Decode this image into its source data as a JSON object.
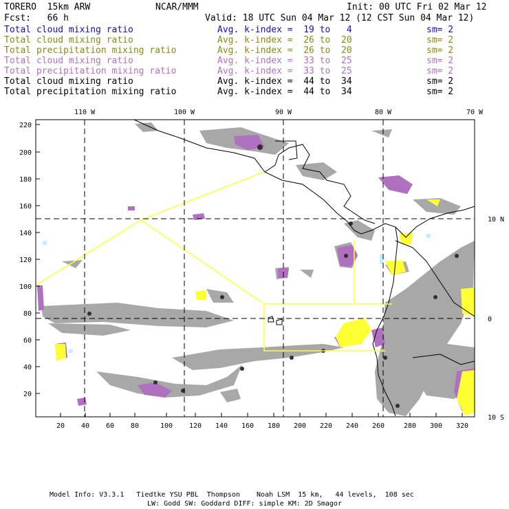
{
  "header": {
    "model": "TORERO  15km ARW",
    "center": "NCAR/MMM",
    "init": "Init: 00 UTC Fri 02 Mar 12",
    "fcst": "Fcst:   66 h",
    "valid": "Valid: 18 UTC Sun 04 Mar 12 (12 CST Sun 04 Mar 12)"
  },
  "legend": [
    {
      "name": "Total cloud mixing ratio",
      "range": "Avg. k-index =  19 to   4",
      "sm": "sm= 2",
      "color": "#1010c0"
    },
    {
      "name": "Total cloud mixing ratio",
      "range": "Avg. k-index =  26 to  20",
      "sm": "sm= 2",
      "color": "#8a8a10"
    },
    {
      "name": "Total precipitation mixing ratio",
      "range": "Avg. k-index =  26 to  20",
      "sm": "sm= 2",
      "color": "#8a8a10"
    },
    {
      "name": "Total cloud mixing ratio",
      "range": "Avg. k-index =  33 to  25",
      "sm": "sm= 2",
      "color": "#b070c0"
    },
    {
      "name": "Total precipitation mixing ratio",
      "range": "Avg. k-index =  33 to  25",
      "sm": "sm= 2",
      "color": "#b070c0"
    },
    {
      "name": "Total cloud mixing ratio",
      "range": "Avg. k-index =  44 to  34",
      "sm": "sm= 2",
      "color": "#000000"
    },
    {
      "name": "Total precipitation mixing ratio",
      "range": "Avg. k-index =  44 to  34",
      "sm": "sm= 2",
      "color": "#000000"
    }
  ],
  "map": {
    "top_lon_labels": [
      "110 W",
      "100 W",
      "90 W",
      "80 W",
      "70 W"
    ],
    "right_lat_labels": [
      "10 N",
      "0",
      "10 S"
    ],
    "y_ticks": [
      "220",
      "200",
      "180",
      "160",
      "140",
      "120",
      "100",
      "80",
      "60",
      "40",
      "20"
    ],
    "x_ticks": [
      "20",
      "40",
      "60",
      "80",
      "100",
      "120",
      "140",
      "160",
      "180",
      "200",
      "220",
      "240",
      "260",
      "280",
      "300",
      "320"
    ]
  },
  "footer": {
    "line1": "Model Info: V3.3.1   Tiedtke YSU PBL  Thompson    Noah LSM  15 km,   44 levels,  108 sec",
    "line2": "LW: Godd SW: Goddard DIFF: simple KM: 2D Smagor"
  },
  "colors": {
    "cloud_gray": "#a8a8a8",
    "dark_core": "#303030",
    "purple": "#b070c0",
    "yellow": "#ffff33",
    "cyan": "#c0f0ff",
    "outline": "#ffff33"
  }
}
